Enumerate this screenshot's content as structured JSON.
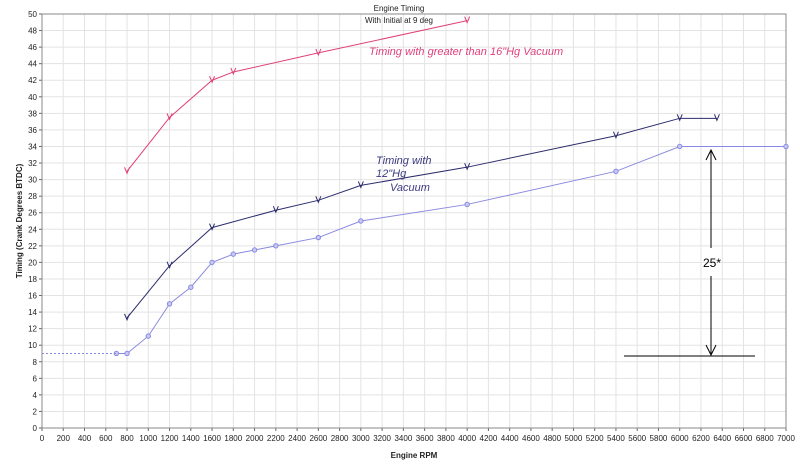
{
  "chart_data": {
    "type": "line",
    "title": "Engine Timing",
    "subtitle": "With Initial  at 9 deg",
    "xlabel": "Engine RPM",
    "ylabel": "Timing (Crank Degrees BTDC)",
    "xlim": [
      0,
      7000
    ],
    "ylim": [
      0,
      50
    ],
    "xticks": [
      0,
      200,
      400,
      600,
      800,
      1000,
      1200,
      1400,
      1600,
      1800,
      2000,
      2200,
      2400,
      2600,
      2800,
      3000,
      3200,
      3400,
      3600,
      3800,
      4000,
      4200,
      4400,
      4600,
      4800,
      5000,
      5200,
      5400,
      5600,
      5800,
      6000,
      6200,
      6400,
      6600,
      6800,
      7000
    ],
    "yticks": [
      0,
      2,
      4,
      6,
      8,
      10,
      12,
      14,
      16,
      18,
      20,
      22,
      24,
      26,
      28,
      30,
      32,
      34,
      36,
      38,
      40,
      42,
      44,
      46,
      48,
      50
    ],
    "grid": true,
    "series": [
      {
        "name": "",
        "color": "#e0407a",
        "marker": "v",
        "x": [
          800,
          1200,
          1600,
          1800,
          2600,
          4000
        ],
        "y": [
          31,
          37.5,
          42,
          43,
          45.3,
          49.2
        ]
      },
      {
        "name": "",
        "color": "#2c2c6c",
        "marker": "v",
        "x": [
          800,
          1200,
          1600,
          2200,
          2600,
          3000,
          4000,
          5400,
          6000,
          6350
        ],
        "y": [
          13.3,
          19.6,
          24.2,
          26.3,
          27.5,
          29.3,
          31.5,
          35.3,
          37.4,
          37.4
        ]
      },
      {
        "name": "",
        "color": "#8a8ae0",
        "marker": "circle",
        "x": [
          700,
          800,
          1000,
          1200,
          1400,
          1600,
          1800,
          2000,
          2200,
          2600,
          3000,
          4000,
          5400,
          6000,
          7000
        ],
        "y": [
          9,
          9,
          11.1,
          15,
          17,
          20,
          21,
          21.5,
          22,
          23,
          25,
          27,
          31,
          34,
          34
        ]
      },
      {
        "name": "",
        "color": "#8a8ae0",
        "marker": "none",
        "dashed": true,
        "x": [
          0,
          700
        ],
        "y": [
          9,
          9
        ]
      }
    ],
    "annotations": {
      "vacuum_high": "Timing with greater than 16\"Hg Vacuum",
      "vacuum_12_line1": "Timing with",
      "vacuum_12_line2": "12\"Hg",
      "vacuum_12_line3": "Vacuum",
      "advance": "25*"
    }
  }
}
